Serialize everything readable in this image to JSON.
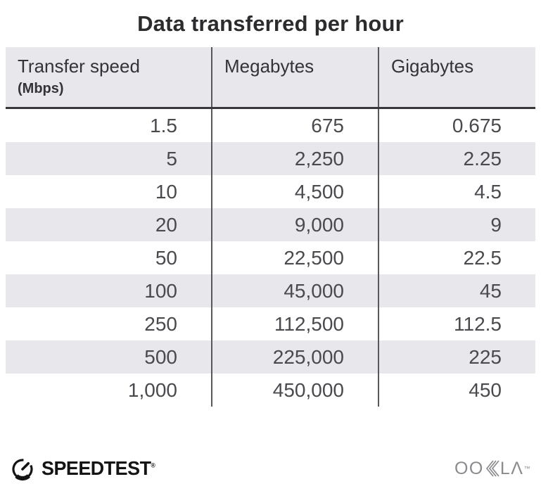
{
  "title": "Data transferred per hour",
  "table": {
    "columns": [
      {
        "label": "Transfer speed",
        "sublabel": "(Mbps)"
      },
      {
        "label": "Megabytes"
      },
      {
        "label": "Gigabytes"
      }
    ],
    "rows": [
      [
        "1.5",
        "675",
        "0.675"
      ],
      [
        "5",
        "2,250",
        "2.25"
      ],
      [
        "10",
        "4,500",
        "4.5"
      ],
      [
        "20",
        "9,000",
        "9"
      ],
      [
        "50",
        "22,500",
        "22.5"
      ],
      [
        "100",
        "45,000",
        "45"
      ],
      [
        "250",
        "112,500",
        "112.5"
      ],
      [
        "500",
        "225,000",
        "225"
      ],
      [
        "1,000",
        "450,000",
        "450"
      ]
    ]
  },
  "chart_data": {
    "type": "table",
    "title": "Data transferred per hour",
    "columns": [
      "Transfer speed (Mbps)",
      "Megabytes",
      "Gigabytes"
    ],
    "rows": [
      [
        1.5,
        675,
        0.675
      ],
      [
        5,
        2250,
        2.25
      ],
      [
        10,
        4500,
        4.5
      ],
      [
        20,
        9000,
        9
      ],
      [
        50,
        22500,
        22.5
      ],
      [
        100,
        45000,
        45
      ],
      [
        250,
        112500,
        112.5
      ],
      [
        500,
        225000,
        225
      ],
      [
        1000,
        450000,
        450
      ]
    ],
    "layout": {
      "striped_rows": true,
      "column_dividers": true,
      "header_rule": true
    }
  },
  "footer": {
    "speedtest_label": "SPEEDTEST",
    "speedtest_mark": "®",
    "ookla_left": "OO",
    "ookla_right": "LΛ",
    "ookla_mark": "™"
  },
  "icons": {
    "speedtest_gauge": "speedometer-gauge-with-needle",
    "ookla_k": "triple-chevron-k"
  },
  "colors": {
    "header_bg": "#e8e7eb",
    "stripe_bg": "#e8e7eb",
    "divider": "#58575b",
    "header_rule": "#39383c",
    "title_text": "#2c2b2e",
    "cell_text": "#4a494e",
    "header_text": "#343338",
    "ookla_gray": "#8b8a8e",
    "speedtest_black": "#141414"
  }
}
